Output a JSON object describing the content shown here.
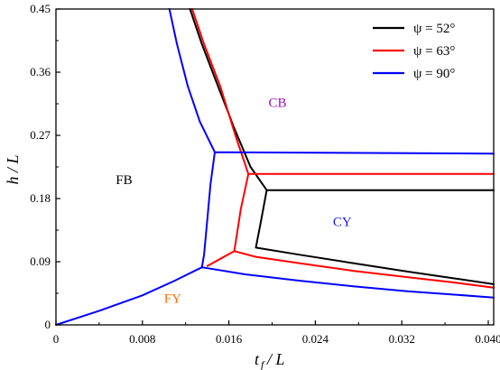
{
  "chart_data": {
    "type": "line",
    "xlabel": "t_f / L",
    "ylabel": "h / L",
    "xlim": [
      0,
      0.0405
    ],
    "ylim": [
      0,
      0.45
    ],
    "xticks": [
      0,
      0.008,
      0.016,
      0.024,
      0.032,
      0.04
    ],
    "xtick_labels": [
      "0",
      "0.008",
      "0.016",
      "0.024",
      "0.032",
      "0.040"
    ],
    "yticks": [
      0,
      0.09,
      0.18,
      0.27,
      0.36,
      0.45
    ],
    "ytick_labels": [
      "0",
      "0.09",
      "0.18",
      "0.27",
      "0.36",
      "0.45"
    ],
    "grid": false,
    "legend_position": "top-right",
    "series": [
      {
        "name": "ψ = 52°",
        "color": "#000000",
        "paths": [
          [
            [
              0.0124,
              0.45
            ],
            [
              0.0135,
              0.4
            ],
            [
              0.015,
              0.34
            ],
            [
              0.0165,
              0.28
            ],
            [
              0.018,
              0.225
            ],
            [
              0.0195,
              0.192
            ],
            [
              0.0405,
              0.192
            ]
          ],
          [
            [
              0.0195,
              0.192
            ],
            [
              0.019,
              0.15
            ],
            [
              0.0185,
              0.11
            ],
            [
              0.0225,
              0.1
            ],
            [
              0.0275,
              0.088
            ],
            [
              0.0325,
              0.076
            ],
            [
              0.037,
              0.066
            ],
            [
              0.0405,
              0.058
            ]
          ]
        ]
      },
      {
        "name": "ψ = 63°",
        "color": "#ff0000",
        "paths": [
          [
            [
              0.0126,
              0.45
            ],
            [
              0.0137,
              0.4
            ],
            [
              0.0152,
              0.34
            ],
            [
              0.0166,
              0.27
            ],
            [
              0.0178,
              0.215
            ],
            [
              0.0405,
              0.215
            ]
          ],
          [
            [
              0.0178,
              0.215
            ],
            [
              0.0171,
              0.165
            ],
            [
              0.0165,
              0.105
            ],
            [
              0.0185,
              0.097
            ],
            [
              0.0225,
              0.088
            ],
            [
              0.0275,
              0.077
            ],
            [
              0.0325,
              0.068
            ],
            [
              0.037,
              0.06
            ],
            [
              0.0405,
              0.053
            ]
          ],
          [
            [
              0.014,
              0.084
            ],
            [
              0.0165,
              0.105
            ]
          ]
        ]
      },
      {
        "name": "ψ = 90°",
        "color": "#0000ff",
        "paths": [
          [
            [
              0.0105,
              0.45
            ],
            [
              0.0112,
              0.4
            ],
            [
              0.0122,
              0.34
            ],
            [
              0.0133,
              0.29
            ],
            [
              0.0147,
              0.246
            ],
            [
              0.0405,
              0.244
            ]
          ],
          [
            [
              0.0147,
              0.246
            ],
            [
              0.0143,
              0.2
            ],
            [
              0.014,
              0.15
            ],
            [
              0.0137,
              0.1
            ],
            [
              0.0135,
              0.082
            ]
          ],
          [
            [
              0.0,
              0.0
            ],
            [
              0.004,
              0.02
            ],
            [
              0.008,
              0.042
            ],
            [
              0.011,
              0.063
            ],
            [
              0.0135,
              0.082
            ]
          ],
          [
            [
              0.0135,
              0.082
            ],
            [
              0.0175,
              0.072
            ],
            [
              0.0225,
              0.063
            ],
            [
              0.0275,
              0.055
            ],
            [
              0.0325,
              0.048
            ],
            [
              0.037,
              0.043
            ],
            [
              0.0405,
              0.039
            ]
          ]
        ]
      }
    ],
    "annotations": [
      {
        "text": "CB",
        "x": 0.0205,
        "y": 0.315,
        "color": "#9b10c4"
      },
      {
        "text": "FB",
        "x": 0.0063,
        "y": 0.205,
        "color": "#000000"
      },
      {
        "text": "CY",
        "x": 0.0265,
        "y": 0.145,
        "color": "#1a1adc"
      },
      {
        "text": "FY",
        "x": 0.0108,
        "y": 0.036,
        "color": "#ff6a00"
      }
    ]
  }
}
